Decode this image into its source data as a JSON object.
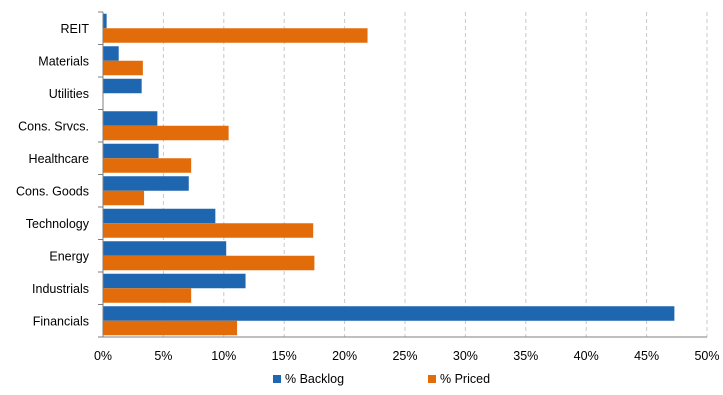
{
  "chart_data": {
    "type": "bar",
    "orientation": "horizontal",
    "categories": [
      "REIT",
      "Materials",
      "Utilities",
      "Cons. Srvcs.",
      "Healthcare",
      "Cons. Goods",
      "Technology",
      "Energy",
      "Industrials",
      "Financials"
    ],
    "series": [
      {
        "name": "% Backlog",
        "color": "#1f66b0",
        "values": [
          0.3,
          1.3,
          3.2,
          4.5,
          4.6,
          7.1,
          9.3,
          10.2,
          11.8,
          47.3
        ]
      },
      {
        "name": "% Priced",
        "color": "#e36c0a",
        "values": [
          21.9,
          3.3,
          0,
          10.4,
          7.3,
          3.4,
          17.4,
          17.5,
          7.3,
          11.1
        ]
      }
    ],
    "xlim": [
      0,
      50
    ],
    "x_ticks": [
      "0%",
      "5%",
      "10%",
      "15%",
      "20%",
      "25%",
      "30%",
      "35%",
      "40%",
      "45%",
      "50%"
    ],
    "grid": "vertical dashed",
    "legend_position": "bottom"
  }
}
